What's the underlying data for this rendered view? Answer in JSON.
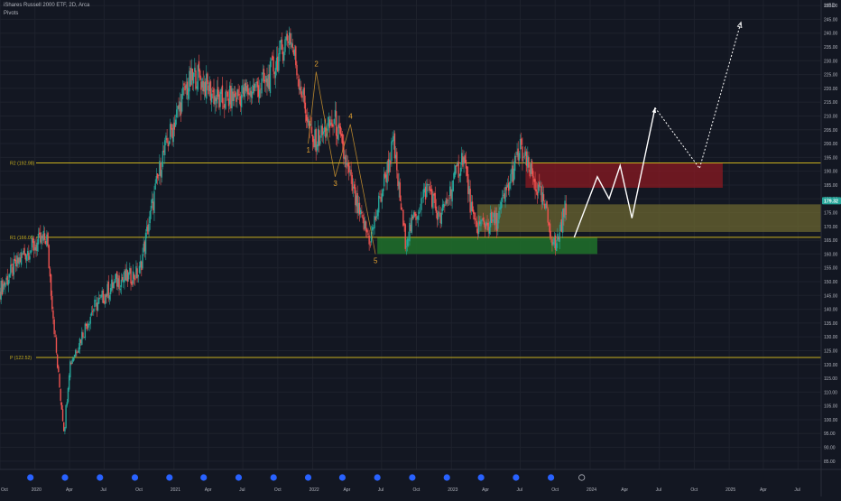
{
  "header": {
    "title": "iShares Russell 2000 ETF, 2D, Arca",
    "indicator": "Pivots",
    "currency": "USD"
  },
  "colors": {
    "background": "#131722",
    "grid": "#1e222d",
    "up": "#26a69a",
    "down": "#ef5350",
    "pivot_line": "#c9b01e",
    "wave_label": "#e0a030",
    "projection": "#ffffff",
    "last_price_badge": "#26a69a",
    "resistance_zone": "#8b1a22",
    "mid_zone": "#6b6530",
    "support_zone": "#1f6b2a",
    "event_marker": "#2962ff"
  },
  "chart_data": {
    "type": "candlestick",
    "title": "iShares Russell 2000 ETF, 2D, Arca",
    "x_axis": {
      "ticks": [
        "Oct",
        "2020",
        "Apr",
        "Jul",
        "Oct",
        "2021",
        "Apr",
        "Jul",
        "Oct",
        "2022",
        "Apr",
        "Jul",
        "Oct",
        "2023",
        "Apr",
        "Jul",
        "Oct",
        "2024",
        "Apr",
        "Jul",
        "Oct",
        "2025",
        "Apr",
        "Jul"
      ],
      "range": [
        "2019-10",
        "2025-08"
      ]
    },
    "y_axis": {
      "position": "right",
      "range": [
        82,
        252
      ],
      "ticks": [
        85,
        90,
        95,
        100,
        105,
        110,
        115,
        120,
        125,
        130,
        135,
        140,
        145,
        150,
        155,
        160,
        165,
        170,
        175,
        180,
        185,
        190,
        195,
        200,
        205,
        210,
        215,
        220,
        225,
        230,
        235,
        240,
        245,
        250
      ],
      "tick_labels": [
        "85.00",
        "90.00",
        "95.00",
        "100.00",
        "105.00",
        "110.00",
        "115.00",
        "120.00",
        "125.00",
        "130.00",
        "135.00",
        "140.00",
        "145.00",
        "150.00",
        "155.00",
        "160.00",
        "165.00",
        "170.00",
        "175.00",
        "180.00",
        "185.00",
        "190.00",
        "195.00",
        "200.00",
        "205.00",
        "210.00",
        "215.00",
        "220.00",
        "225.00",
        "230.00",
        "235.00",
        "240.00",
        "245.00",
        "250.00"
      ],
      "currency": "USD"
    },
    "last_price": {
      "value": 179.32,
      "label": "179.32"
    },
    "price_path": [
      [
        "2019-10",
        147
      ],
      [
        "2019-12",
        160
      ],
      [
        "2020-02",
        166
      ],
      [
        "2020-03",
        118
      ],
      [
        "2020-03-18",
        96
      ],
      [
        "2020-04",
        120
      ],
      [
        "2020-06",
        140
      ],
      [
        "2020-08",
        150
      ],
      [
        "2020-10",
        153
      ],
      [
        "2020-11",
        175
      ],
      [
        "2020-12",
        195
      ],
      [
        "2021-02",
        220
      ],
      [
        "2021-03",
        225
      ],
      [
        "2021-05",
        215
      ],
      [
        "2021-07",
        218
      ],
      [
        "2021-09",
        222
      ],
      [
        "2021-11",
        240
      ],
      [
        "2021-12",
        220
      ],
      [
        "2022-01",
        200
      ],
      [
        "2022-03",
        208
      ],
      [
        "2022-05",
        175
      ],
      [
        "2022-06",
        165
      ],
      [
        "2022-08",
        200
      ],
      [
        "2022-09",
        165
      ],
      [
        "2022-11",
        185
      ],
      [
        "2022-12",
        172
      ],
      [
        "2023-02",
        196
      ],
      [
        "2023-03",
        170
      ],
      [
        "2023-05",
        172
      ],
      [
        "2023-07",
        198
      ],
      [
        "2023-09",
        178
      ],
      [
        "2023-10",
        162
      ],
      [
        "2023-11",
        179
      ]
    ],
    "pivot_levels": [
      {
        "label": "R2 (192.98)",
        "value": 192.98
      },
      {
        "label": "R1 (166.08)",
        "value": 166.08
      },
      {
        "label": "P (122.52)",
        "value": 122.52
      }
    ],
    "zones": [
      {
        "name": "resistance",
        "from": "2023-07-15",
        "to": "2024-12-15",
        "top": 193,
        "bottom": 184
      },
      {
        "name": "mid",
        "from": "2023-03-10",
        "to": "2025-08-31",
        "top": 178,
        "bottom": 168
      },
      {
        "name": "support",
        "from": "2022-06-20",
        "to": "2024-01-20",
        "top": 166,
        "bottom": 160
      }
    ],
    "elliott_waves": [
      {
        "label": "1",
        "date": "2021-12-20",
        "value": 200
      },
      {
        "label": "2",
        "date": "2022-01-10",
        "value": 226
      },
      {
        "label": "3",
        "date": "2022-03-01",
        "value": 188
      },
      {
        "label": "4",
        "date": "2022-04-10",
        "value": 207
      },
      {
        "label": "5",
        "date": "2022-06-15",
        "value": 160
      }
    ],
    "projection_path": [
      [
        "2023-11-20",
        166
      ],
      [
        "2024-01-20",
        188
      ],
      [
        "2024-02-20",
        180
      ],
      [
        "2024-03-20",
        192
      ],
      [
        "2024-04-20",
        173
      ],
      [
        "2024-06-20",
        213
      ]
    ],
    "projection_dotted": [
      [
        "2024-06-20",
        213
      ],
      [
        "2024-10-15",
        191
      ],
      [
        "2025-02-01",
        244
      ]
    ],
    "event_markers": [
      "2019-12-20",
      "2020-03-20",
      "2020-06-20",
      "2020-09-20",
      "2020-12-20",
      "2021-03-20",
      "2021-06-20",
      "2021-09-20",
      "2021-12-20",
      "2022-03-20",
      "2022-06-20",
      "2022-09-20",
      "2022-12-20",
      "2023-03-20",
      "2023-06-20",
      "2023-09-20",
      "2023-12-10"
    ]
  }
}
